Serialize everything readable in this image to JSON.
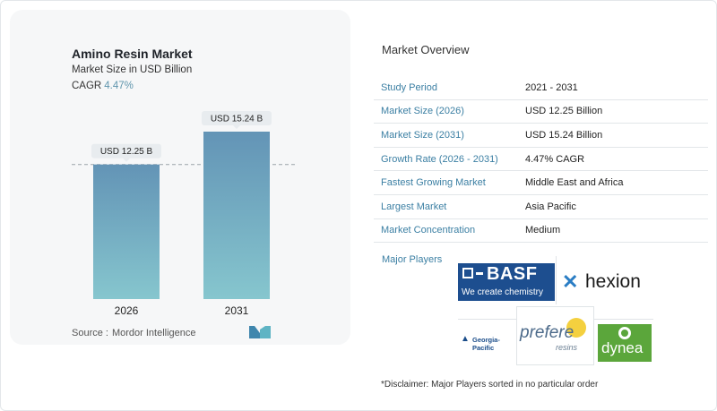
{
  "card": {
    "title": "Amino Resin Market",
    "subtitle": "Market Size in USD Billion",
    "cagr_label": "CAGR",
    "cagr_value": "4.47%",
    "source_label": "Source :",
    "source_value": "Mordor Intelligence"
  },
  "chart_data": {
    "type": "bar",
    "title": "Amino Resin Market",
    "ylabel": "Market Size in USD Billion",
    "categories": [
      "2026",
      "2031"
    ],
    "values": [
      12.25,
      15.24
    ],
    "data_labels": [
      "USD 12.25 B",
      "USD 15.24 B"
    ],
    "reference_line": 12.25,
    "grid": false,
    "colors": {
      "bar_top": "#6394b6",
      "bar_bottom": "#86c6ce",
      "label_bg": "#e8ecef"
    }
  },
  "overview": {
    "title": "Market Overview",
    "rows": [
      {
        "key": "Study Period",
        "value": "2021 - 2031"
      },
      {
        "key": "Market Size (2026)",
        "value": "USD 12.25 Billion"
      },
      {
        "key": "Market Size (2031)",
        "value": "USD 15.24 Billion"
      },
      {
        "key": "Growth Rate (2026 - 2031)",
        "value": "4.47% CAGR"
      },
      {
        "key": "Fastest Growing Market",
        "value": "Middle East and Africa"
      },
      {
        "key": "Largest Market",
        "value": "Asia Pacific"
      },
      {
        "key": "Market Concentration",
        "value": "Medium"
      }
    ],
    "accent": "#3b7fa3"
  },
  "players": {
    "label": "Major Players",
    "basf_name": "BASF",
    "basf_tagline": "We create chemistry",
    "hexion_name": "hexion",
    "gp_name": "Georgia-Pacific",
    "prefere_name": "prefere",
    "prefere_sub": "resins",
    "dynea_name": "dynea"
  },
  "disclaimer": "*Disclaimer: Major Players sorted in no particular order"
}
